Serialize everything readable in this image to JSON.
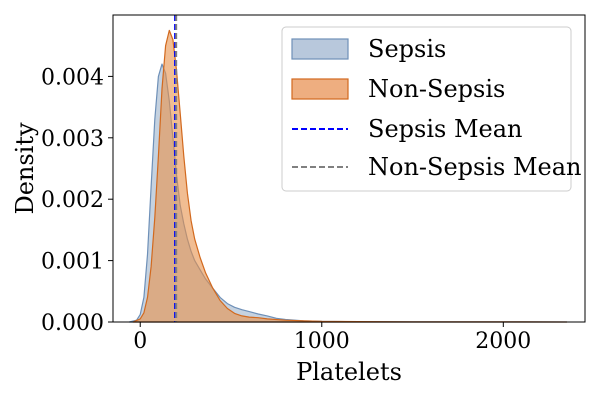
{
  "chart_data": {
    "type": "area",
    "title": "",
    "xlabel": "Platelets",
    "ylabel": "Density",
    "xlim": [
      -150,
      2450
    ],
    "ylim": [
      0,
      0.005
    ],
    "xticks": [
      {
        "value": 0,
        "label": "0"
      },
      {
        "value": 1000,
        "label": "1000"
      },
      {
        "value": 2000,
        "label": "2000"
      }
    ],
    "yticks": [
      {
        "value": 0.0,
        "label": "0.000"
      },
      {
        "value": 0.001,
        "label": "0.001"
      },
      {
        "value": 0.002,
        "label": "0.002"
      },
      {
        "value": 0.003,
        "label": "0.003"
      },
      {
        "value": 0.004,
        "label": "0.004"
      }
    ],
    "grid": false,
    "legend_position": "top-right",
    "series": [
      {
        "name": "Sepsis",
        "kind": "kde-area",
        "fill": "#9fb4cc",
        "stroke": "#6e90b8",
        "x": [
          -60,
          -20,
          0,
          20,
          40,
          60,
          80,
          100,
          120,
          140,
          160,
          180,
          200,
          220,
          240,
          260,
          280,
          300,
          330,
          360,
          400,
          440,
          480,
          520,
          560,
          600,
          650,
          700,
          750,
          800,
          900,
          1000,
          1200,
          1500,
          1800,
          2100,
          2350
        ],
        "y": [
          0.0,
          3e-05,
          0.00012,
          0.0004,
          0.0011,
          0.0022,
          0.0033,
          0.004,
          0.0042,
          0.00405,
          0.0036,
          0.003,
          0.0024,
          0.0019,
          0.0016,
          0.00135,
          0.00115,
          0.001,
          0.00085,
          0.0007,
          0.00055,
          0.0004,
          0.0003,
          0.00024,
          0.0002,
          0.00017,
          0.00013,
          0.0001,
          6e-05,
          4e-05,
          2e-05,
          1e-05,
          5e-06,
          3e-06,
          2e-06,
          1e-06,
          0.0
        ]
      },
      {
        "name": "Non-Sepsis",
        "kind": "kde-area",
        "fill": "#e8914a",
        "stroke": "#d2691e",
        "x": [
          -40,
          0,
          20,
          40,
          60,
          80,
          100,
          120,
          140,
          160,
          180,
          200,
          220,
          240,
          260,
          280,
          300,
          330,
          360,
          400,
          440,
          480,
          520,
          560,
          600,
          650,
          700,
          800,
          900,
          1000,
          1200,
          1500,
          1800,
          2100,
          2350
        ],
        "y": [
          0.0,
          5e-05,
          0.00015,
          0.0004,
          0.0009,
          0.0017,
          0.0027,
          0.0038,
          0.0045,
          0.00475,
          0.0046,
          0.0041,
          0.0034,
          0.0027,
          0.0021,
          0.00165,
          0.00135,
          0.00105,
          0.0008,
          0.00055,
          0.00035,
          0.00022,
          0.00014,
          0.0001,
          8e-05,
          7e-05,
          5e-05,
          3e-05,
          2e-05,
          1e-05,
          6e-06,
          4e-06,
          2e-06,
          1e-06,
          0.0
        ]
      }
    ],
    "reference_lines": [
      {
        "name": "Sepsis Mean",
        "x": 192,
        "color": "#0000ff",
        "style": "dashed"
      },
      {
        "name": "Non-Sepsis Mean",
        "x": 198,
        "color": "#808080",
        "style": "dashed"
      }
    ],
    "legend": [
      {
        "label": "Sepsis",
        "kind": "patch",
        "fill": "#b8c8dc",
        "stroke": "#6e90b8"
      },
      {
        "label": "Non-Sepsis",
        "kind": "patch",
        "fill": "#eeae80",
        "stroke": "#d2691e"
      },
      {
        "label": "Sepsis Mean",
        "kind": "line",
        "color": "#0000ff"
      },
      {
        "label": "Non-Sepsis Mean",
        "kind": "line",
        "color": "#808080"
      }
    ]
  }
}
